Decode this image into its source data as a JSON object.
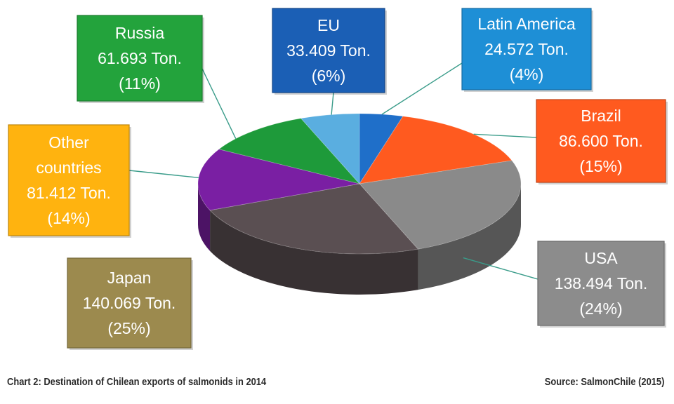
{
  "chart_data": {
    "type": "pie",
    "title": "",
    "unit": "Ton.",
    "slices": [
      {
        "label": "Latin America",
        "value": 24572,
        "value_text": "24.572 Ton.",
        "percent_text": "(4%)",
        "color": "#1f6fc9"
      },
      {
        "label": "Brazil",
        "value": 86600,
        "value_text": "86.600  Ton.",
        "percent_text": "(15%)",
        "color": "#ff5a1f"
      },
      {
        "label": "USA",
        "value": 138494,
        "value_text": "138.494 Ton.",
        "percent_text": "(24%)",
        "color": "#8a8a8a"
      },
      {
        "label": "Japan",
        "value": 140069,
        "value_text": "140.069 Ton.",
        "percent_text": "(25%)",
        "color": "#5a4f52"
      },
      {
        "label": "Other countries",
        "value": 81412,
        "value_text": "81.412  Ton.",
        "percent_text": "(14%)",
        "color": "#7a1fa3"
      },
      {
        "label": "Russia",
        "value": 61693,
        "value_text": "61.693 Ton.",
        "percent_text": "(11%)",
        "color": "#1e9a3a"
      },
      {
        "label": "EU",
        "value": 33409,
        "value_text": "33.409 Ton.",
        "percent_text": "(6%)",
        "color": "#5aaee0"
      }
    ],
    "label_boxes": {
      "Latin America": {
        "fill": "#1e8fd6",
        "lines": [
          "Latin America",
          "24.572 Ton.",
          "(4%)"
        ]
      },
      "Brazil": {
        "fill": "#ff5a1f",
        "lines": [
          "Brazil",
          "86.600  Ton.",
          "(15%)"
        ]
      },
      "USA": {
        "fill": "#8c8c8c",
        "lines": [
          "USA",
          "138.494 Ton.",
          "(24%)"
        ]
      },
      "Japan": {
        "fill": "#9c8a4e",
        "lines": [
          "Japan",
          "140.069 Ton.",
          "(25%)"
        ]
      },
      "Other countries": {
        "fill": "#ffb30f",
        "lines": [
          "Other",
          "countries",
          "81.412  Ton.",
          "(14%)"
        ]
      },
      "Russia": {
        "fill": "#23a33c",
        "lines": [
          "Russia",
          "61.693 Ton.",
          "(11%)"
        ]
      },
      "EU": {
        "fill": "#1b5fb5",
        "lines": [
          "EU",
          "33.409 Ton.",
          "(6%)"
        ]
      }
    },
    "legend": "none",
    "style": "3d-pie with callout boxes"
  },
  "footer": {
    "caption": "Chart 2: Destination of Chilean exports of salmonids in 2014",
    "source": "Source: SalmonChile (2015)"
  }
}
